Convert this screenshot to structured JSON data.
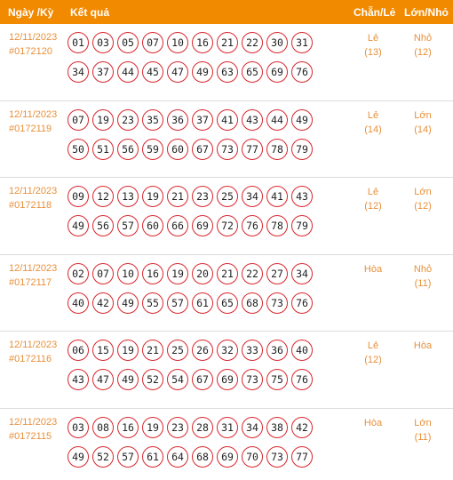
{
  "header": {
    "date_label": "Ngày /Kỳ",
    "result_label": "Kết quả",
    "chanle_label": "Chẵn/Lẻ",
    "lonnho_label": "Lớn/Nhỏ"
  },
  "rows": [
    {
      "date": "12/11/2023",
      "draw": "#0172120",
      "numbers": [
        "01",
        "03",
        "05",
        "07",
        "10",
        "16",
        "21",
        "22",
        "30",
        "31",
        "34",
        "37",
        "44",
        "45",
        "47",
        "49",
        "63",
        "65",
        "69",
        "76"
      ],
      "chanle": "Lẻ",
      "chanle_count": "(13)",
      "lonnho": "Nhỏ",
      "lonnho_count": "(12)"
    },
    {
      "date": "12/11/2023",
      "draw": "#0172119",
      "numbers": [
        "07",
        "19",
        "23",
        "35",
        "36",
        "37",
        "41",
        "43",
        "44",
        "49",
        "50",
        "51",
        "56",
        "59",
        "60",
        "67",
        "73",
        "77",
        "78",
        "79"
      ],
      "chanle": "Lẻ",
      "chanle_count": "(14)",
      "lonnho": "Lớn",
      "lonnho_count": "(14)"
    },
    {
      "date": "12/11/2023",
      "draw": "#0172118",
      "numbers": [
        "09",
        "12",
        "13",
        "19",
        "21",
        "23",
        "25",
        "34",
        "41",
        "43",
        "49",
        "56",
        "57",
        "60",
        "66",
        "69",
        "72",
        "76",
        "78",
        "79"
      ],
      "chanle": "Lẻ",
      "chanle_count": "(12)",
      "lonnho": "Lớn",
      "lonnho_count": "(12)"
    },
    {
      "date": "12/11/2023",
      "draw": "#0172117",
      "numbers": [
        "02",
        "07",
        "10",
        "16",
        "19",
        "20",
        "21",
        "22",
        "27",
        "34",
        "40",
        "42",
        "49",
        "55",
        "57",
        "61",
        "65",
        "68",
        "73",
        "76"
      ],
      "chanle": "Hòa",
      "chanle_count": "",
      "lonnho": "Nhỏ",
      "lonnho_count": "(11)"
    },
    {
      "date": "12/11/2023",
      "draw": "#0172116",
      "numbers": [
        "06",
        "15",
        "19",
        "21",
        "25",
        "26",
        "32",
        "33",
        "36",
        "40",
        "43",
        "47",
        "49",
        "52",
        "54",
        "67",
        "69",
        "73",
        "75",
        "76"
      ],
      "chanle": "Lẻ",
      "chanle_count": "(12)",
      "lonnho": "Hòa",
      "lonnho_count": ""
    },
    {
      "date": "12/11/2023",
      "draw": "#0172115",
      "numbers": [
        "03",
        "08",
        "16",
        "19",
        "23",
        "28",
        "31",
        "34",
        "38",
        "42",
        "49",
        "52",
        "57",
        "61",
        "64",
        "68",
        "69",
        "70",
        "73",
        "77"
      ],
      "chanle": "Hòa",
      "chanle_count": "",
      "lonnho": "Lớn",
      "lonnho_count": "(11)"
    }
  ],
  "colors": {
    "header_bg": "#f28a00",
    "accent_text": "#e8903a",
    "ball_border": "#d9262d"
  }
}
